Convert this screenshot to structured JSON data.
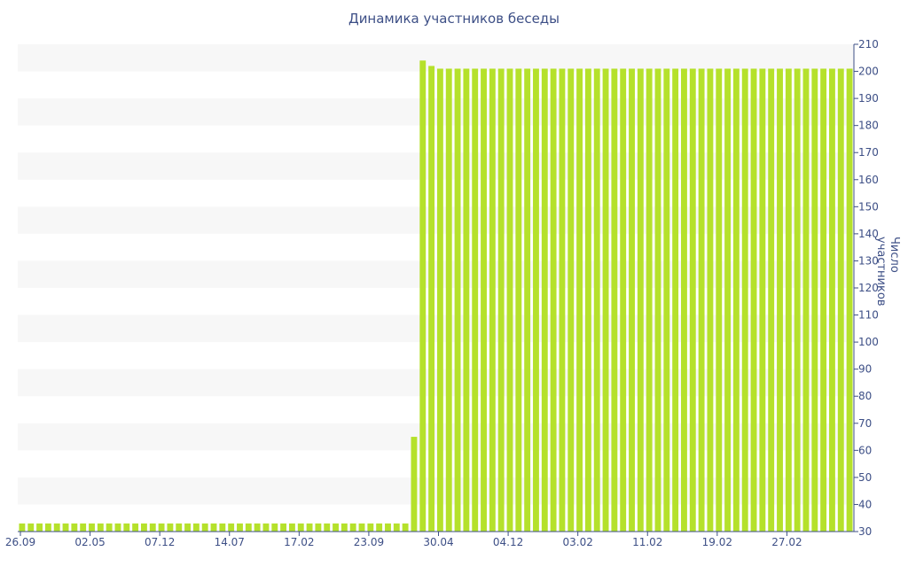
{
  "chart_data": {
    "type": "bar",
    "title": "Динамика участников беседы",
    "xlabel": "",
    "ylabel": "Число участников",
    "ylim": [
      30,
      210
    ],
    "yticks": [
      30,
      40,
      50,
      60,
      70,
      80,
      90,
      100,
      110,
      120,
      130,
      140,
      150,
      160,
      170,
      180,
      190,
      200,
      210
    ],
    "xtick_labels": [
      "26.09",
      "02.05",
      "07.12",
      "14.07",
      "17.02",
      "23.09",
      "30.04",
      "04.12",
      "03.02",
      "11.02",
      "19.02",
      "27.02"
    ],
    "grid": "alternating horizontal bands",
    "y_axis_position": "right",
    "bar_color": "#b5e12b",
    "series": [
      {
        "values": [
          33,
          33,
          33,
          33,
          33,
          33,
          33,
          33,
          33,
          33,
          33,
          33,
          33,
          33,
          33,
          33,
          33,
          33,
          33,
          33,
          33,
          33,
          33,
          33,
          33,
          33,
          33,
          33,
          33,
          33,
          33,
          33,
          33,
          33,
          33,
          33,
          33,
          33,
          33,
          33,
          33,
          33,
          33,
          33,
          33,
          65,
          204,
          202,
          201,
          201,
          201,
          201,
          201,
          201,
          201,
          201,
          201,
          201,
          201,
          201,
          201,
          201,
          201,
          201,
          201,
          201,
          201,
          201,
          201,
          201,
          201,
          201,
          201,
          201,
          201,
          201,
          201,
          201,
          201,
          201,
          201,
          201,
          201,
          201,
          201,
          201,
          201,
          201,
          201,
          201,
          201,
          201,
          201,
          201,
          201,
          201
        ]
      }
    ]
  }
}
